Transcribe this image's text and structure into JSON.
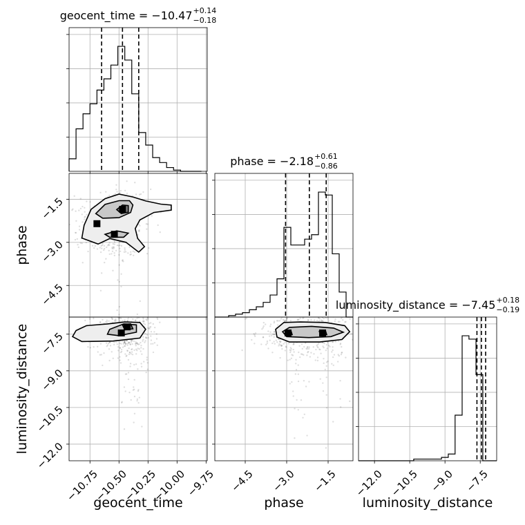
{
  "chart_data": {
    "type": "corner",
    "parameters": [
      "geocent_time",
      "phase",
      "luminosity_distance"
    ],
    "axis_labels": {
      "geocent_time": "geocent_time",
      "phase": "phase",
      "luminosity_distance": "luminosity_distance"
    },
    "ranges": {
      "geocent_time": [
        -10.93,
        -9.74
      ],
      "phase": [
        -5.6,
        -0.6
      ],
      "luminosity_distance": [
        -12.68,
        -6.8
      ]
    },
    "ticks": {
      "geocent_time": [
        -10.75,
        -10.5,
        -10.25,
        -10.0,
        -9.75
      ],
      "phase": [
        -4.5,
        -3.0,
        -1.5
      ],
      "luminosity_distance": [
        -12.0,
        -10.5,
        -9.0,
        -7.5
      ]
    },
    "tick_labels": {
      "geocent_time": [
        "−10.75",
        "−10.50",
        "−10.25",
        "−10.00",
        "−9.75"
      ],
      "phase": [
        "−4.5",
        "−3.0",
        "−1.5"
      ],
      "luminosity_distance": [
        "−12.0",
        "−10.5",
        "−9.0",
        "−7.5"
      ]
    },
    "titles": [
      {
        "param": "geocent_time",
        "prefix": "geocent_time = −10.47",
        "plus": "+0.14",
        "minus": "−0.18"
      },
      {
        "param": "phase",
        "prefix": "phase = −2.18",
        "plus": "+0.61",
        "minus": "−0.86"
      },
      {
        "param": "luminosity_distance",
        "prefix": "luminosity_distance = −7.45",
        "plus": "+0.18",
        "minus": "−0.19"
      }
    ],
    "histograms": {
      "geocent_time": {
        "edges": [
          -10.93,
          -10.87,
          -10.81,
          -10.75,
          -10.69,
          -10.63,
          -10.57,
          -10.51,
          -10.45,
          -10.39,
          -10.33,
          -10.27,
          -10.21,
          -10.15,
          -10.09,
          -10.03,
          -9.97,
          -9.91,
          -9.85,
          -9.79
        ],
        "counts": [
          0.1,
          0.34,
          0.46,
          0.54,
          0.65,
          0.74,
          0.85,
          1.0,
          0.89,
          0.62,
          0.31,
          0.21,
          0.11,
          0.07,
          0.03,
          0.01,
          0.0,
          0.0,
          0.0
        ],
        "quantiles": [
          -10.65,
          -10.47,
          -10.33
        ]
      },
      "phase": {
        "edges": [
          -5.6,
          -5.35,
          -5.1,
          -4.85,
          -4.6,
          -4.35,
          -4.1,
          -3.85,
          -3.6,
          -3.35,
          -3.1,
          -2.85,
          -2.6,
          -2.35,
          -2.1,
          -1.85,
          -1.6,
          -1.35,
          -1.1,
          -0.85,
          -0.6
        ],
        "counts": [
          0.0,
          0.0,
          0.01,
          0.02,
          0.03,
          0.05,
          0.07,
          0.1,
          0.15,
          0.26,
          0.61,
          0.49,
          0.49,
          0.53,
          0.56,
          0.85,
          0.83,
          0.43,
          0.17,
          0.0
        ],
        "quantiles": [
          -3.04,
          -2.18,
          -1.57
        ]
      },
      "luminosity_distance": {
        "edges": [
          -12.68,
          -12.39,
          -12.09,
          -11.8,
          -11.51,
          -11.21,
          -10.92,
          -10.62,
          -10.33,
          -10.04,
          -9.74,
          -9.45,
          -9.15,
          -8.86,
          -8.57,
          -8.27,
          -7.98,
          -7.68,
          -7.39,
          -7.09,
          -6.8
        ],
        "counts": [
          0.0,
          0.0,
          0.0,
          0.0,
          0.0,
          0.0,
          0.0,
          0.0,
          0.01,
          0.01,
          0.01,
          0.01,
          0.02,
          0.04,
          0.27,
          0.74,
          0.72,
          0.51,
          0.0,
          0.0
        ],
        "quantiles": [
          -7.64,
          -7.45,
          -7.27
        ]
      }
    },
    "joint": [
      {
        "x": "geocent_time",
        "y": "phase",
        "peaks": [
          [
            -10.47,
            -1.85
          ],
          [
            -10.69,
            -2.35
          ],
          [
            -10.54,
            -2.72
          ]
        ],
        "contours": [
          {
            "level": "outer",
            "fill": "#eeeeee",
            "points": [
              [
                -10.8,
                -2.4
              ],
              [
                -10.74,
                -1.85
              ],
              [
                -10.62,
                -1.48
              ],
              [
                -10.5,
                -1.32
              ],
              [
                -10.38,
                -1.42
              ],
              [
                -10.27,
                -1.56
              ],
              [
                -10.14,
                -1.67
              ],
              [
                -10.05,
                -1.7
              ],
              [
                -10.05,
                -1.88
              ],
              [
                -10.2,
                -1.96
              ],
              [
                -10.32,
                -2.22
              ],
              [
                -10.36,
                -2.52
              ],
              [
                -10.34,
                -2.86
              ],
              [
                -10.28,
                -3.15
              ],
              [
                -10.33,
                -3.34
              ],
              [
                -10.44,
                -3.0
              ],
              [
                -10.58,
                -2.87
              ],
              [
                -10.68,
                -3.06
              ],
              [
                -10.82,
                -2.85
              ]
            ]
          },
          {
            "level": "middle",
            "fill": "#c8c8c8",
            "points": [
              [
                -10.7,
                -2.0
              ],
              [
                -10.62,
                -1.68
              ],
              [
                -10.5,
                -1.55
              ],
              [
                -10.41,
                -1.55
              ],
              [
                -10.38,
                -1.7
              ],
              [
                -10.4,
                -1.96
              ],
              [
                -10.5,
                -2.14
              ],
              [
                -10.64,
                -2.16
              ]
            ]
          },
          {
            "level": "inner",
            "fill": "#7a7a7a",
            "points": [
              [
                -10.52,
                -1.86
              ],
              [
                -10.47,
                -1.7
              ],
              [
                -10.42,
                -1.72
              ],
              [
                -10.42,
                -1.95
              ],
              [
                -10.48,
                -2.0
              ]
            ]
          },
          {
            "level": "middle",
            "fill": "#c8c8c8",
            "points": [
              [
                -10.62,
                -2.72
              ],
              [
                -10.52,
                -2.6
              ],
              [
                -10.42,
                -2.68
              ],
              [
                -10.46,
                -2.82
              ],
              [
                -10.58,
                -2.82
              ]
            ]
          }
        ]
      },
      {
        "x": "geocent_time",
        "y": "luminosity_distance",
        "peaks": [
          [
            -10.43,
            -7.2
          ],
          [
            -10.48,
            -7.45
          ]
        ],
        "contours": [
          {
            "level": "outer",
            "fill": "#eeeeee",
            "points": [
              [
                -10.87,
                -7.35
              ],
              [
                -10.78,
                -7.15
              ],
              [
                -10.6,
                -7.08
              ],
              [
                -10.45,
                -7.0
              ],
              [
                -10.32,
                -7.02
              ],
              [
                -10.27,
                -7.3
              ],
              [
                -10.32,
                -7.66
              ],
              [
                -10.55,
                -7.78
              ],
              [
                -10.82,
                -7.8
              ],
              [
                -10.9,
                -7.6
              ]
            ]
          },
          {
            "level": "middle",
            "fill": "#c8c8c8",
            "points": [
              [
                -10.58,
                -7.3
              ],
              [
                -10.46,
                -7.08
              ],
              [
                -10.35,
                -7.12
              ],
              [
                -10.35,
                -7.42
              ],
              [
                -10.5,
                -7.56
              ],
              [
                -10.6,
                -7.5
              ]
            ]
          },
          {
            "level": "inner",
            "fill": "#7a7a7a",
            "points": [
              [
                -10.47,
                -7.12
              ],
              [
                -10.4,
                -7.08
              ],
              [
                -10.38,
                -7.28
              ],
              [
                -10.45,
                -7.32
              ]
            ]
          }
        ]
      },
      {
        "x": "phase",
        "y": "luminosity_distance",
        "peaks": [
          [
            -2.95,
            -7.45
          ],
          [
            -1.7,
            -7.45
          ]
        ],
        "contours": [
          {
            "level": "outer",
            "fill": "#eeeeee",
            "points": [
              [
                -3.4,
                -7.3
              ],
              [
                -3.1,
                -7.02
              ],
              [
                -2.5,
                -7.0
              ],
              [
                -1.6,
                -7.02
              ],
              [
                -0.9,
                -7.15
              ],
              [
                -0.72,
                -7.4
              ],
              [
                -1.0,
                -7.72
              ],
              [
                -1.8,
                -7.82
              ],
              [
                -2.9,
                -7.82
              ],
              [
                -3.35,
                -7.62
              ]
            ]
          },
          {
            "level": "middle",
            "fill": "#c8c8c8",
            "points": [
              [
                -3.15,
                -7.4
              ],
              [
                -2.9,
                -7.22
              ],
              [
                -2.1,
                -7.18
              ],
              [
                -1.3,
                -7.25
              ],
              [
                -0.95,
                -7.42
              ],
              [
                -1.4,
                -7.6
              ],
              [
                -2.2,
                -7.64
              ],
              [
                -3.0,
                -7.6
              ]
            ]
          },
          {
            "level": "inner",
            "fill": "#7a7a7a",
            "points": [
              [
                -3.02,
                -7.4
              ],
              [
                -2.85,
                -7.34
              ],
              [
                -2.8,
                -7.52
              ],
              [
                -2.98,
                -7.52
              ]
            ]
          },
          {
            "level": "inner",
            "fill": "#7a7a7a",
            "points": [
              [
                -1.82,
                -7.38
              ],
              [
                -1.6,
                -7.34
              ],
              [
                -1.55,
                -7.52
              ],
              [
                -1.78,
                -7.54
              ]
            ]
          }
        ]
      }
    ]
  }
}
